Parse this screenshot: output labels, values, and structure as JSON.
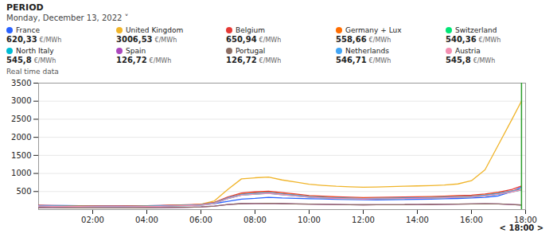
{
  "chart_data": {
    "type": "line",
    "title": "PERIOD",
    "subtitle": "Monday, December 13, 2022  ˅",
    "x": [
      0,
      0.5,
      1,
      1.5,
      2,
      2.5,
      3,
      3.5,
      4,
      4.5,
      5,
      5.5,
      6,
      6.5,
      7,
      7.5,
      8,
      8.5,
      9,
      9.5,
      10,
      10.5,
      11,
      11.5,
      12,
      12.5,
      13,
      13.5,
      14,
      14.5,
      15,
      15.5,
      16,
      16.5,
      17,
      17.5,
      17.85
    ],
    "series": [
      {
        "name": "France",
        "color": "#2962ff",
        "current_value": "620,33",
        "unit": "€/MWh",
        "values": [
          120,
          115,
          110,
          108,
          105,
          103,
          100,
          105,
          108,
          112,
          118,
          125,
          135,
          165,
          230,
          290,
          310,
          340,
          320,
          310,
          300,
          295,
          285,
          278,
          272,
          270,
          275,
          280,
          285,
          290,
          298,
          308,
          320,
          340,
          380,
          500,
          620
        ]
      },
      {
        "name": "United Kingdom",
        "color": "#f0b429",
        "current_value": "3006,53",
        "unit": "€/MWh",
        "values": [
          100,
          95,
          90,
          88,
          85,
          83,
          80,
          85,
          90,
          100,
          110,
          125,
          145,
          240,
          560,
          850,
          880,
          900,
          820,
          760,
          700,
          670,
          645,
          630,
          620,
          625,
          635,
          645,
          655,
          665,
          680,
          710,
          800,
          1100,
          1800,
          2500,
          3006
        ]
      },
      {
        "name": "Belgium",
        "color": "#e53935",
        "current_value": "650,94",
        "unit": "€/MWh",
        "values": [
          120,
          112,
          108,
          105,
          102,
          100,
          98,
          102,
          108,
          115,
          123,
          133,
          148,
          200,
          350,
          460,
          490,
          510,
          470,
          430,
          390,
          370,
          352,
          342,
          335,
          338,
          342,
          348,
          355,
          362,
          372,
          385,
          400,
          430,
          480,
          560,
          651
        ]
      },
      {
        "name": "Germany + Lux",
        "color": "#ff6d00",
        "current_value": "558,66",
        "unit": "€/MWh",
        "values": [
          110,
          104,
          100,
          97,
          94,
          92,
          90,
          94,
          100,
          108,
          116,
          126,
          140,
          188,
          330,
          430,
          460,
          480,
          445,
          408,
          370,
          350,
          333,
          323,
          315,
          318,
          323,
          328,
          335,
          342,
          352,
          365,
          378,
          408,
          458,
          520,
          559
        ]
      },
      {
        "name": "Switzerland",
        "color": "#00e676",
        "current_value": "540,36",
        "unit": "€/MWh",
        "values": [
          100,
          95,
          91,
          88,
          86,
          84,
          82,
          86,
          91,
          98,
          106,
          115,
          128,
          175,
          310,
          405,
          435,
          455,
          420,
          385,
          348,
          330,
          315,
          305,
          298,
          300,
          305,
          310,
          317,
          323,
          332,
          344,
          357,
          386,
          435,
          498,
          540
        ]
      },
      {
        "name": "North Italy",
        "color": "#00bcd4",
        "current_value": "545,8",
        "unit": "€/MWh",
        "values": [
          95,
          90,
          86,
          83,
          81,
          79,
          78,
          81,
          86,
          93,
          101,
          110,
          123,
          170,
          305,
          398,
          428,
          448,
          413,
          378,
          342,
          324,
          308,
          298,
          292,
          294,
          299,
          304,
          310,
          317,
          326,
          338,
          350,
          378,
          426,
          490,
          546
        ]
      },
      {
        "name": "Spain",
        "color": "#ab47bc",
        "current_value": "126,72",
        "unit": "€/MWh",
        "values": [
          55,
          52,
          50,
          48,
          47,
          46,
          45,
          47,
          50,
          54,
          59,
          65,
          73,
          95,
          140,
          165,
          170,
          172,
          165,
          158,
          150,
          145,
          140,
          136,
          132,
          133,
          135,
          137,
          140,
          143,
          147,
          152,
          157,
          160,
          155,
          140,
          127
        ]
      },
      {
        "name": "Portugal",
        "color": "#8d6e63",
        "current_value": "126,72",
        "unit": "€/MWh",
        "values": [
          55,
          52,
          50,
          48,
          47,
          46,
          45,
          47,
          50,
          54,
          59,
          65,
          73,
          95,
          140,
          165,
          170,
          172,
          165,
          158,
          150,
          145,
          140,
          136,
          132,
          133,
          135,
          137,
          140,
          143,
          147,
          152,
          157,
          160,
          155,
          140,
          127
        ]
      },
      {
        "name": "Netherlands",
        "color": "#42a5f5",
        "current_value": "546,71",
        "unit": "€/MWh",
        "values": [
          105,
          100,
          96,
          93,
          90,
          88,
          86,
          90,
          96,
          103,
          111,
          120,
          134,
          182,
          325,
          418,
          448,
          468,
          432,
          396,
          358,
          340,
          324,
          314,
          307,
          309,
          314,
          319,
          326,
          333,
          342,
          355,
          368,
          398,
          448,
          512,
          547
        ]
      },
      {
        "name": "Austria",
        "color": "#f48fb1",
        "current_value": "545,8",
        "unit": "€/MWh",
        "values": [
          95,
          90,
          86,
          83,
          81,
          79,
          78,
          81,
          86,
          93,
          101,
          110,
          123,
          170,
          305,
          398,
          428,
          448,
          413,
          378,
          342,
          324,
          308,
          298,
          292,
          294,
          299,
          304,
          310,
          317,
          326,
          338,
          350,
          378,
          426,
          490,
          546
        ]
      }
    ],
    "xlim": [
      0,
      18
    ],
    "xticks": [
      {
        "value": 2,
        "label": "02:00"
      },
      {
        "value": 4,
        "label": "04:00"
      },
      {
        "value": 6,
        "label": "06:00"
      },
      {
        "value": 8,
        "label": "08:00"
      },
      {
        "value": 10,
        "label": "10:00"
      },
      {
        "value": 12,
        "label": "12:00"
      },
      {
        "value": 14,
        "label": "14:00"
      },
      {
        "value": 16,
        "label": "16:00"
      },
      {
        "value": 18,
        "label": "18:00"
      }
    ],
    "ylim": [
      0,
      3500
    ],
    "yticks": [
      500,
      1000,
      1500,
      2000,
      2500,
      3000,
      3500
    ],
    "grid": true,
    "legend": "top",
    "annotations": [
      {
        "text": "Real time data"
      },
      {
        "text": "< 18:00 >",
        "x": 17.85
      }
    ]
  }
}
